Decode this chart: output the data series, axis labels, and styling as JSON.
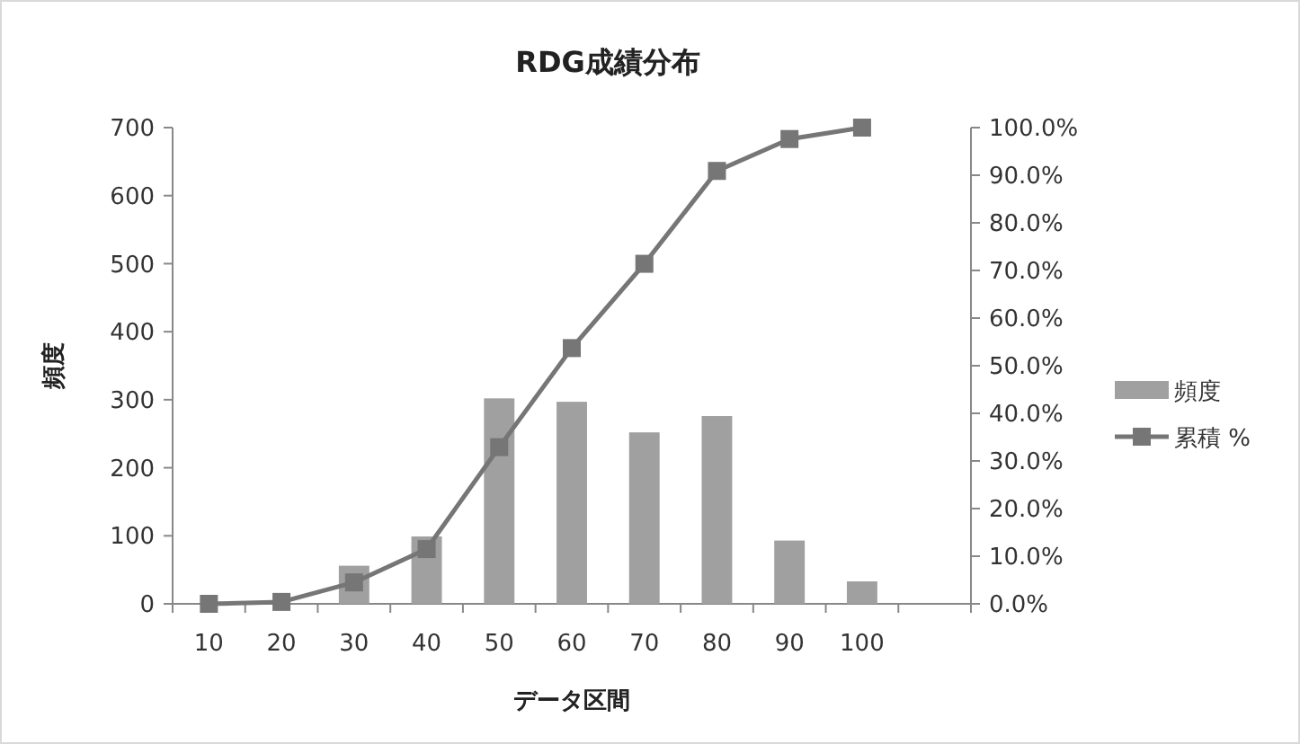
{
  "chart_data": {
    "type": "bar",
    "title": "RDG成績分布",
    "xlabel": "データ区間",
    "ylabel": "頻度",
    "categories": [
      "10",
      "20",
      "30",
      "40",
      "50",
      "60",
      "70",
      "80",
      "90",
      "100",
      null
    ],
    "series": [
      {
        "name": "頻度",
        "color": "#a0a0a0",
        "values": [
          0,
          0,
          56,
          99,
          302,
          297,
          252,
          276,
          93,
          33,
          0
        ]
      },
      {
        "name": "累積 %",
        "type": "line",
        "axis": "y2",
        "color": "#767676",
        "marker": "square",
        "values": [
          0,
          0.4,
          4.5,
          11.5,
          32.9,
          53.7,
          71.4,
          90.9,
          97.6,
          100,
          null
        ]
      }
    ],
    "ylim": [
      0,
      700
    ],
    "yticks": [
      0,
      100,
      200,
      300,
      400,
      500,
      600,
      700
    ],
    "y2lim": [
      0,
      100
    ],
    "y2ticks": [
      {
        "value": 0,
        "label": "0.0%"
      },
      {
        "value": 10,
        "label": "10.0%"
      },
      {
        "value": 20,
        "label": "20.0%"
      },
      {
        "value": 30,
        "label": "30.0%"
      },
      {
        "value": 40,
        "label": "40.0%"
      },
      {
        "value": 50,
        "label": "50.0%"
      },
      {
        "value": 60,
        "label": "60.0%"
      },
      {
        "value": 70,
        "label": "70.0%"
      },
      {
        "value": 80,
        "label": "80.0%"
      },
      {
        "value": 90,
        "label": "90.0%"
      },
      {
        "value": 100,
        "label": "100.0%"
      }
    ],
    "grid": false,
    "legend": "right"
  }
}
